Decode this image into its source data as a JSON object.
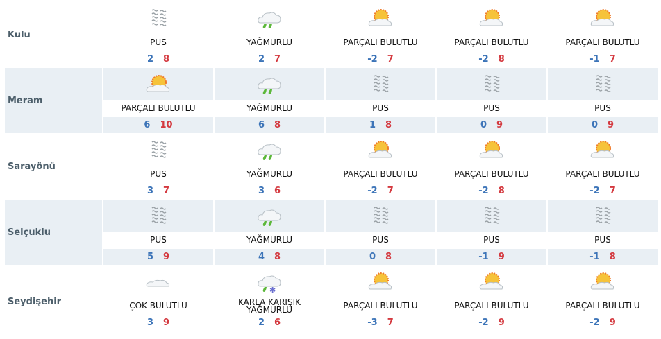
{
  "colors": {
    "low": "#3c74b8",
    "high": "#d4393f",
    "shaded_row": "#e9eff4"
  },
  "rows": [
    {
      "city": "Kulu",
      "days": [
        {
          "icon": "fog-icon",
          "desc": "PUS",
          "low": "2",
          "high": "8"
        },
        {
          "icon": "rain-icon",
          "desc": "YAĞMURLU",
          "low": "2",
          "high": "7"
        },
        {
          "icon": "partly-cloudy-icon",
          "desc": "PARÇALI BULUTLU",
          "low": "-2",
          "high": "7"
        },
        {
          "icon": "partly-cloudy-icon",
          "desc": "PARÇALI BULUTLU",
          "low": "-2",
          "high": "8"
        },
        {
          "icon": "partly-cloudy-icon",
          "desc": "PARÇALI BULUTLU",
          "low": "-1",
          "high": "7"
        }
      ]
    },
    {
      "city": "Meram",
      "days": [
        {
          "icon": "partly-cloudy-icon",
          "desc": "PARÇALI BULUTLU",
          "low": "6",
          "high": "10"
        },
        {
          "icon": "rain-icon",
          "desc": "YAĞMURLU",
          "low": "6",
          "high": "8"
        },
        {
          "icon": "fog-icon",
          "desc": "PUS",
          "low": "1",
          "high": "8"
        },
        {
          "icon": "fog-icon",
          "desc": "PUS",
          "low": "0",
          "high": "9"
        },
        {
          "icon": "fog-icon",
          "desc": "PUS",
          "low": "0",
          "high": "9"
        }
      ]
    },
    {
      "city": "Sarayönü",
      "days": [
        {
          "icon": "fog-icon",
          "desc": "PUS",
          "low": "3",
          "high": "7"
        },
        {
          "icon": "rain-icon",
          "desc": "YAĞMURLU",
          "low": "3",
          "high": "6"
        },
        {
          "icon": "partly-cloudy-icon",
          "desc": "PARÇALI BULUTLU",
          "low": "-2",
          "high": "7"
        },
        {
          "icon": "partly-cloudy-icon",
          "desc": "PARÇALI BULUTLU",
          "low": "-2",
          "high": "8"
        },
        {
          "icon": "partly-cloudy-icon",
          "desc": "PARÇALI BULUTLU",
          "low": "-2",
          "high": "7"
        }
      ]
    },
    {
      "city": "Selçuklu",
      "days": [
        {
          "icon": "fog-icon",
          "desc": "PUS",
          "low": "5",
          "high": "9"
        },
        {
          "icon": "rain-icon",
          "desc": "YAĞMURLU",
          "low": "4",
          "high": "8"
        },
        {
          "icon": "fog-icon",
          "desc": "PUS",
          "low": "0",
          "high": "8"
        },
        {
          "icon": "fog-icon",
          "desc": "PUS",
          "low": "-1",
          "high": "9"
        },
        {
          "icon": "fog-icon",
          "desc": "PUS",
          "low": "-1",
          "high": "8"
        }
      ]
    },
    {
      "city": "Seydişehir",
      "days": [
        {
          "icon": "cloudy-icon",
          "desc": "ÇOK BULUTLU",
          "low": "3",
          "high": "9"
        },
        {
          "icon": "sleet-icon",
          "desc": "KARLA KARIŞIK YAĞMURLU",
          "low": "2",
          "high": "6"
        },
        {
          "icon": "partly-cloudy-icon",
          "desc": "PARÇALI BULUTLU",
          "low": "-3",
          "high": "7"
        },
        {
          "icon": "partly-cloudy-icon",
          "desc": "PARÇALI BULUTLU",
          "low": "-2",
          "high": "9"
        },
        {
          "icon": "partly-cloudy-icon",
          "desc": "PARÇALI BULUTLU",
          "low": "-2",
          "high": "9"
        }
      ]
    }
  ]
}
